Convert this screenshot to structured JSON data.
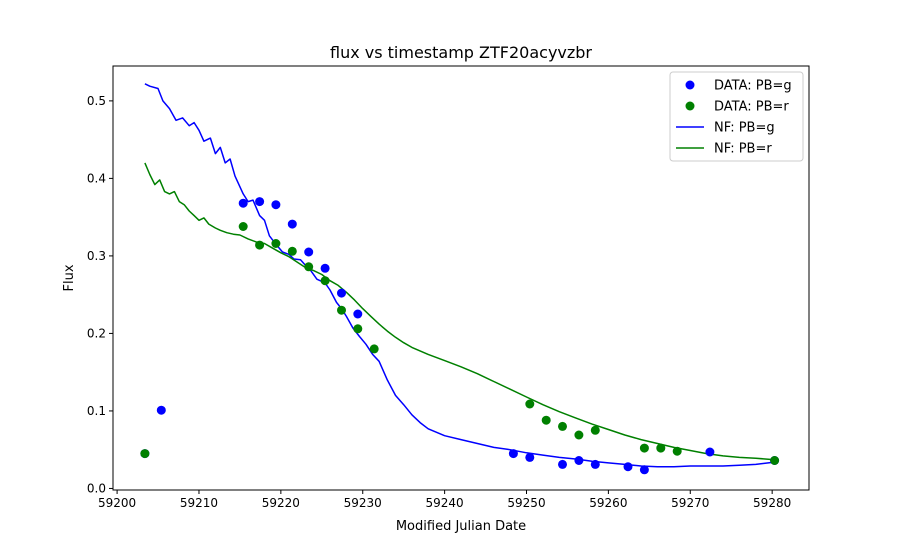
{
  "chart_data": {
    "type": "scatter",
    "title": "flux vs timestamp ZTF20acyvzbr",
    "xlabel": "Modified Julian Date",
    "ylabel": "Flux",
    "xlim": [
      59199.5,
      59284.5
    ],
    "ylim": [
      -0.002,
      0.545
    ],
    "xticks": [
      59200,
      59210,
      59220,
      59230,
      59240,
      59250,
      59260,
      59270,
      59280
    ],
    "yticks": [
      0.0,
      0.1,
      0.2,
      0.3,
      0.4,
      0.5
    ],
    "grid": false,
    "legend_position": "top-right",
    "colors": {
      "g": "#0000ff",
      "r": "#008000"
    },
    "scatter_series": [
      {
        "name": "DATA: PB=g",
        "color": "#0000ff",
        "points": [
          [
            59203.4,
            0.045
          ],
          [
            59205.4,
            0.101
          ],
          [
            59215.4,
            0.368
          ],
          [
            59217.4,
            0.37
          ],
          [
            59219.4,
            0.366
          ],
          [
            59221.4,
            0.341
          ],
          [
            59223.4,
            0.305
          ],
          [
            59225.4,
            0.284
          ],
          [
            59227.4,
            0.252
          ],
          [
            59229.4,
            0.225
          ],
          [
            59248.4,
            0.045
          ],
          [
            59250.4,
            0.04
          ],
          [
            59254.4,
            0.031
          ],
          [
            59256.4,
            0.036
          ],
          [
            59258.4,
            0.031
          ],
          [
            59262.4,
            0.028
          ],
          [
            59264.4,
            0.024
          ],
          [
            59272.4,
            0.047
          ],
          [
            59280.3,
            0.036
          ]
        ]
      },
      {
        "name": "DATA: PB=r",
        "color": "#008000",
        "points": [
          [
            59203.4,
            0.045
          ],
          [
            59215.4,
            0.338
          ],
          [
            59217.4,
            0.314
          ],
          [
            59219.4,
            0.316
          ],
          [
            59221.4,
            0.306
          ],
          [
            59223.4,
            0.286
          ],
          [
            59225.4,
            0.268
          ],
          [
            59227.4,
            0.23
          ],
          [
            59229.4,
            0.206
          ],
          [
            59231.4,
            0.18
          ],
          [
            59250.4,
            0.109
          ],
          [
            59252.4,
            0.088
          ],
          [
            59254.4,
            0.08
          ],
          [
            59256.4,
            0.069
          ],
          [
            59258.4,
            0.075
          ],
          [
            59264.4,
            0.052
          ],
          [
            59266.4,
            0.052
          ],
          [
            59268.4,
            0.048
          ],
          [
            59280.3,
            0.036
          ]
        ]
      }
    ],
    "line_series": [
      {
        "name": "NF: PB=g",
        "color": "#0000ff",
        "points": [
          [
            59203.4,
            0.522
          ],
          [
            59204.0,
            0.519
          ],
          [
            59205.0,
            0.516
          ],
          [
            59205.6,
            0.5
          ],
          [
            59206.4,
            0.49
          ],
          [
            59207.2,
            0.475
          ],
          [
            59208.0,
            0.478
          ],
          [
            59208.8,
            0.468
          ],
          [
            59209.4,
            0.472
          ],
          [
            59210.0,
            0.462
          ],
          [
            59210.6,
            0.448
          ],
          [
            59211.4,
            0.452
          ],
          [
            59212.0,
            0.432
          ],
          [
            59212.6,
            0.44
          ],
          [
            59213.2,
            0.42
          ],
          [
            59213.8,
            0.425
          ],
          [
            59214.4,
            0.403
          ],
          [
            59215.4,
            0.38
          ],
          [
            59216.0,
            0.37
          ],
          [
            59216.6,
            0.372
          ],
          [
            59217.4,
            0.352
          ],
          [
            59218.0,
            0.346
          ],
          [
            59218.6,
            0.326
          ],
          [
            59219.4,
            0.315
          ],
          [
            59220.2,
            0.305
          ],
          [
            59221.0,
            0.302
          ],
          [
            59221.6,
            0.296
          ],
          [
            59222.4,
            0.295
          ],
          [
            59223.0,
            0.288
          ],
          [
            59223.6,
            0.282
          ],
          [
            59224.4,
            0.27
          ],
          [
            59225.4,
            0.265
          ],
          [
            59226.0,
            0.256
          ],
          [
            59226.8,
            0.24
          ],
          [
            59227.4,
            0.232
          ],
          [
            59228.0,
            0.222
          ],
          [
            59228.8,
            0.207
          ],
          [
            59229.6,
            0.196
          ],
          [
            59230.4,
            0.186
          ],
          [
            59231.2,
            0.173
          ],
          [
            59232.0,
            0.164
          ],
          [
            59233.0,
            0.14
          ],
          [
            59234.0,
            0.12
          ],
          [
            59235.0,
            0.108
          ],
          [
            59236.0,
            0.095
          ],
          [
            59237.0,
            0.085
          ],
          [
            59238.0,
            0.077
          ],
          [
            59240.0,
            0.068
          ],
          [
            59242.0,
            0.063
          ],
          [
            59244.0,
            0.058
          ],
          [
            59246.0,
            0.053
          ],
          [
            59248.0,
            0.05
          ],
          [
            59250.0,
            0.046
          ],
          [
            59252.0,
            0.043
          ],
          [
            59254.0,
            0.04
          ],
          [
            59256.0,
            0.038
          ],
          [
            59258.0,
            0.035
          ],
          [
            59260.0,
            0.033
          ],
          [
            59262.0,
            0.031
          ],
          [
            59264.0,
            0.029
          ],
          [
            59266.0,
            0.028
          ],
          [
            59268.0,
            0.028
          ],
          [
            59270.0,
            0.029
          ],
          [
            59272.0,
            0.029
          ],
          [
            59274.0,
            0.029
          ],
          [
            59276.0,
            0.03
          ],
          [
            59278.0,
            0.031
          ],
          [
            59280.3,
            0.034
          ]
        ]
      },
      {
        "name": "NF: PB=r",
        "color": "#008000",
        "points": [
          [
            59203.4,
            0.42
          ],
          [
            59204.0,
            0.405
          ],
          [
            59204.6,
            0.392
          ],
          [
            59205.2,
            0.398
          ],
          [
            59205.8,
            0.383
          ],
          [
            59206.4,
            0.38
          ],
          [
            59207.0,
            0.383
          ],
          [
            59207.6,
            0.37
          ],
          [
            59208.2,
            0.366
          ],
          [
            59208.8,
            0.358
          ],
          [
            59209.4,
            0.352
          ],
          [
            59210.0,
            0.346
          ],
          [
            59210.6,
            0.349
          ],
          [
            59211.2,
            0.341
          ],
          [
            59212.0,
            0.336
          ],
          [
            59212.6,
            0.333
          ],
          [
            59213.4,
            0.33
          ],
          [
            59214.2,
            0.328
          ],
          [
            59215.0,
            0.327
          ],
          [
            59216.0,
            0.322
          ],
          [
            59217.0,
            0.318
          ],
          [
            59218.0,
            0.316
          ],
          [
            59219.0,
            0.31
          ],
          [
            59220.0,
            0.304
          ],
          [
            59221.0,
            0.299
          ],
          [
            59222.0,
            0.292
          ],
          [
            59223.0,
            0.285
          ],
          [
            59224.0,
            0.281
          ],
          [
            59225.0,
            0.276
          ],
          [
            59226.0,
            0.268
          ],
          [
            59227.0,
            0.262
          ],
          [
            59228.0,
            0.253
          ],
          [
            59229.0,
            0.243
          ],
          [
            59230.0,
            0.232
          ],
          [
            59231.0,
            0.222
          ],
          [
            59232.0,
            0.212
          ],
          [
            59233.0,
            0.203
          ],
          [
            59234.0,
            0.195
          ],
          [
            59235.0,
            0.188
          ],
          [
            59236.0,
            0.182
          ],
          [
            59238.0,
            0.173
          ],
          [
            59240.0,
            0.165
          ],
          [
            59242.0,
            0.157
          ],
          [
            59244.0,
            0.148
          ],
          [
            59246.0,
            0.138
          ],
          [
            59248.0,
            0.128
          ],
          [
            59250.0,
            0.118
          ],
          [
            59252.0,
            0.108
          ],
          [
            59254.0,
            0.099
          ],
          [
            59256.0,
            0.091
          ],
          [
            59258.0,
            0.083
          ],
          [
            59260.0,
            0.076
          ],
          [
            59262.0,
            0.069
          ],
          [
            59264.0,
            0.063
          ],
          [
            59266.0,
            0.058
          ],
          [
            59268.0,
            0.053
          ],
          [
            59270.0,
            0.049
          ],
          [
            59272.0,
            0.045
          ],
          [
            59274.0,
            0.042
          ],
          [
            59276.0,
            0.04
          ],
          [
            59278.0,
            0.039
          ],
          [
            59280.3,
            0.037
          ]
        ]
      }
    ],
    "legend": [
      {
        "label": "DATA: PB=g",
        "kind": "marker",
        "color": "#0000ff"
      },
      {
        "label": "DATA: PB=r",
        "kind": "marker",
        "color": "#008000"
      },
      {
        "label": "NF: PB=g",
        "kind": "line",
        "color": "#0000ff"
      },
      {
        "label": "NF: PB=r",
        "kind": "line",
        "color": "#008000"
      }
    ]
  }
}
